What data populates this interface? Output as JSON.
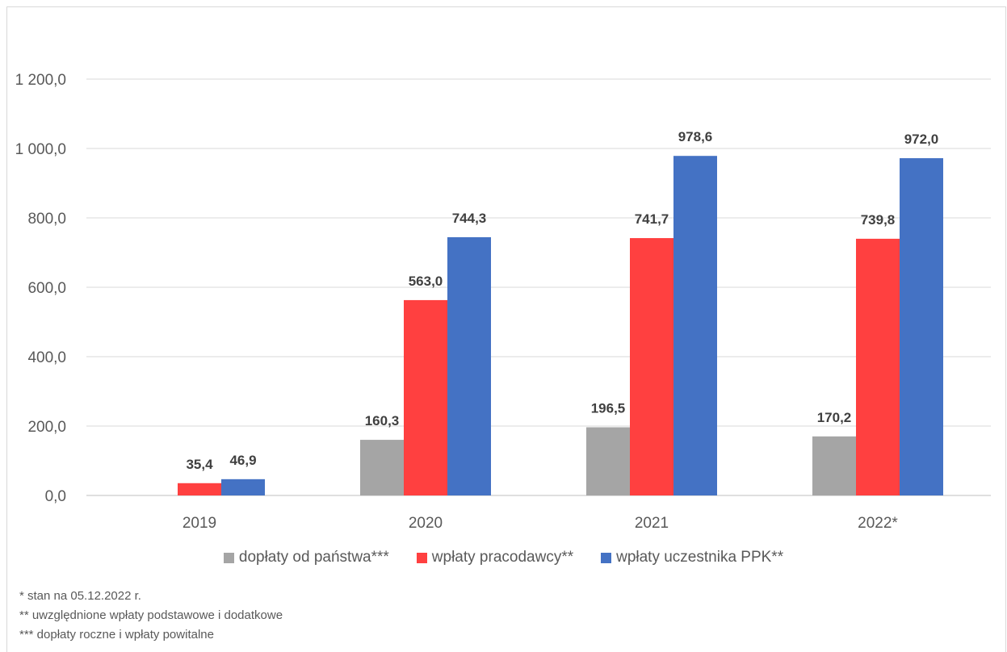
{
  "chart_data": {
    "type": "bar",
    "categories": [
      "2019",
      "2020",
      "2021",
      "2022*"
    ],
    "series": [
      {
        "name": "dopłaty od państwa***",
        "color": "#a5a5a5",
        "values": [
          null,
          160.3,
          196.5,
          170.2
        ],
        "labels": [
          null,
          "160,3",
          "196,5",
          "170,2"
        ]
      },
      {
        "name": "wpłaty pracodawcy**",
        "color": "#ff4040",
        "values": [
          35.4,
          563.0,
          741.7,
          739.8
        ],
        "labels": [
          "35,4",
          "563,0",
          "741,7",
          "739,8"
        ]
      },
      {
        "name": "wpłaty uczestnika PPK**",
        "color": "#4472c4",
        "values": [
          46.9,
          744.3,
          978.6,
          972.0
        ],
        "labels": [
          "46,9",
          "744,3",
          "978,6",
          "972,0"
        ]
      }
    ],
    "yticks": [
      0,
      200,
      400,
      600,
      800,
      1000,
      1200
    ],
    "ytick_labels": [
      "0,0",
      "200,0",
      "400,0",
      "600,0",
      "800,0",
      "1 000,0",
      "1 200,0"
    ],
    "ylim": [
      0,
      1200
    ],
    "grid": true,
    "legend_position": "bottom"
  },
  "footnotes": [
    "* stan na 05.12.2022 r.",
    "** uwzględnione wpłaty podstawowe i dodatkowe",
    "*** dopłaty roczne i wpłaty powitalne"
  ]
}
